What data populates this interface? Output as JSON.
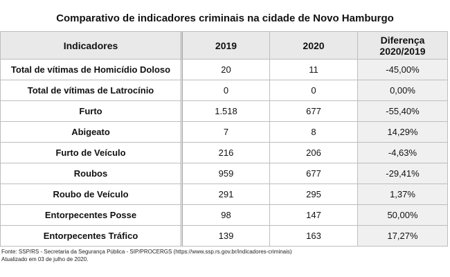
{
  "title": "Comparativo de indicadores criminais na cidade de Novo Hamburgo",
  "table": {
    "headers": {
      "indicator": "Indicadores",
      "y2019": "2019",
      "y2020": "2020",
      "diff_line1": "Diferença",
      "diff_line2": "2020/2019"
    },
    "rows": [
      {
        "indicator": "Total de vítimas de Homicídio Doloso",
        "y2019": "20",
        "y2020": "11",
        "diff": "-45,00%"
      },
      {
        "indicator": "Total de vítimas de Latrocínio",
        "y2019": "0",
        "y2020": "0",
        "diff": "0,00%"
      },
      {
        "indicator": "Furto",
        "y2019": "1.518",
        "y2020": "677",
        "diff": "-55,40%"
      },
      {
        "indicator": "Abigeato",
        "y2019": "7",
        "y2020": "8",
        "diff": "14,29%"
      },
      {
        "indicator": "Furto de Veículo",
        "y2019": "216",
        "y2020": "206",
        "diff": "-4,63%"
      },
      {
        "indicator": "Roubos",
        "y2019": "959",
        "y2020": "677",
        "diff": "-29,41%"
      },
      {
        "indicator": "Roubo de Veículo",
        "y2019": "291",
        "y2020": "295",
        "diff": "1,37%"
      },
      {
        "indicator": "Entorpecentes Posse",
        "y2019": "98",
        "y2020": "147",
        "diff": "50,00%"
      },
      {
        "indicator": "Entorpecentes Tráfico",
        "y2019": "139",
        "y2020": "163",
        "diff": "17,27%"
      }
    ]
  },
  "footer": {
    "source": "Fonte: SSP/RS - Secretaria da Segurança Pública - SIP/PROCERGS (https://www.ssp.rs.gov.br/indicadores-criminais)",
    "updated": "Atualizado em 03 de julho de 2020."
  }
}
